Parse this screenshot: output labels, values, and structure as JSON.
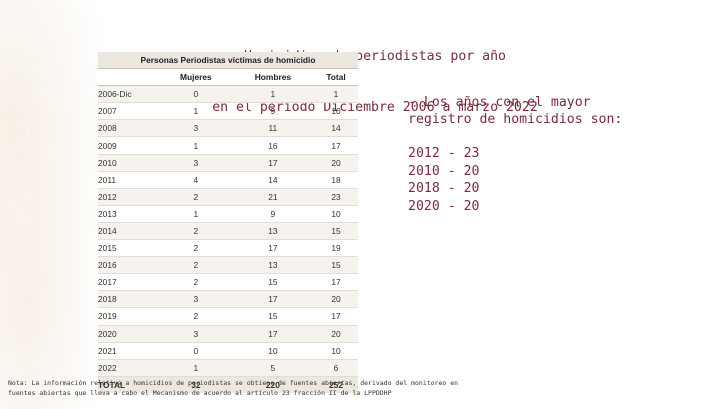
{
  "title": {
    "line1": "Homicidios de periodistas por año",
    "line2": "en el periodo Diciembre 2006 a marzo 2022"
  },
  "table": {
    "super_header": "Personas Periodistas víctimas de homicidio",
    "columns": [
      "",
      "Mujeres",
      "Hombres",
      "Total"
    ],
    "rows": [
      [
        "2006-Dic",
        "0",
        "1",
        "1"
      ],
      [
        "2007",
        "1",
        "9",
        "10"
      ],
      [
        "2008",
        "3",
        "11",
        "14"
      ],
      [
        "2009",
        "1",
        "16",
        "17"
      ],
      [
        "2010",
        "3",
        "17",
        "20"
      ],
      [
        "2011",
        "4",
        "14",
        "18"
      ],
      [
        "2012",
        "2",
        "21",
        "23"
      ],
      [
        "2013",
        "1",
        "9",
        "10"
      ],
      [
        "2014",
        "2",
        "13",
        "15"
      ],
      [
        "2015",
        "2",
        "17",
        "19"
      ],
      [
        "2016",
        "2",
        "13",
        "15"
      ],
      [
        "2017",
        "2",
        "15",
        "17"
      ],
      [
        "2018",
        "3",
        "17",
        "20"
      ],
      [
        "2019",
        "2",
        "15",
        "17"
      ],
      [
        "2020",
        "3",
        "17",
        "20"
      ],
      [
        "2021",
        "0",
        "10",
        "10"
      ],
      [
        "2022",
        "1",
        "5",
        "6"
      ]
    ],
    "total": [
      "TOTAL",
      "32",
      "220",
      "252"
    ]
  },
  "highlight": {
    "line1": "- Los años con el mayor",
    "line2": "registro de homicidios son:",
    "records": [
      "2012 - 23",
      "2010 - 20",
      "2018 - 20",
      "2020 - 20"
    ]
  },
  "footnote": {
    "line1": "Nota: La información relativa a homicidios de periodistas se obtiene de fuentes abiertas, derivado del monitoreo en",
    "line2": "fuentes abiertas que lleva a cabo el Mecanismo de acuerdo al artículo 23 fracción II de la LPPDDHP"
  }
}
